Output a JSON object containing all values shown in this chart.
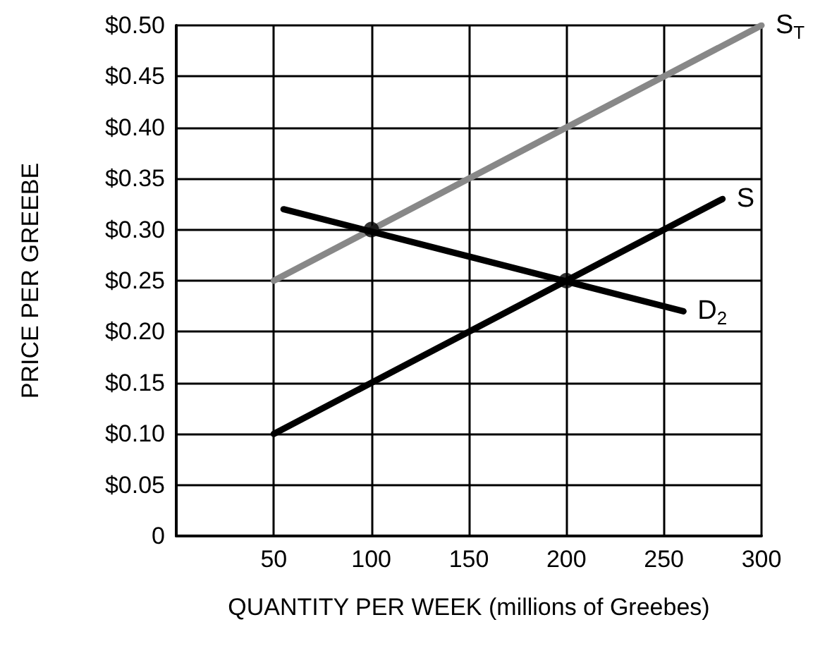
{
  "chart_data": {
    "type": "line",
    "xlabel": "QUANTITY PER WEEK (millions of Greebes)",
    "ylabel": "PRICE PER GREEBE",
    "xlim": [
      0,
      300
    ],
    "xticks": [
      50,
      100,
      150,
      200,
      250,
      300
    ],
    "ylim": [
      0,
      0.5
    ],
    "yticks": [
      0,
      {
        "value": 0.05,
        "label": "$0.05"
      },
      {
        "value": 0.1,
        "label": "$0.10"
      },
      {
        "value": 0.15,
        "label": "$0.15"
      },
      {
        "value": 0.2,
        "label": "$0.20"
      },
      {
        "value": 0.25,
        "label": "$0.25"
      },
      {
        "value": 0.3,
        "label": "$0.30"
      },
      {
        "value": 0.35,
        "label": "$0.35"
      },
      {
        "value": 0.4,
        "label": "$0.40"
      },
      {
        "value": 0.45,
        "label": "$0.45"
      },
      {
        "value": 0.5,
        "label": "$0.50"
      }
    ],
    "grid": true,
    "legend": false,
    "marker": "none",
    "line_style": "solid",
    "series": [
      {
        "name": "S$_{T}$",
        "color": "#888888",
        "x": [
          50,
          300
        ],
        "values": [
          0.25,
          0.5
        ]
      },
      {
        "name": "S",
        "color": "#000000",
        "x": [
          50,
          280
        ],
        "values": [
          0.1,
          0.33
        ]
      },
      {
        "name": "D$_{2}$",
        "color": "#000000",
        "x": [
          55,
          260
        ],
        "values": [
          0.32,
          0.22
        ]
      },
      {
        "type": "scatter",
        "marker": "circle",
        "color": "#000000",
        "x": [
          100,
          200
        ],
        "values": [
          0.3,
          0.25
        ]
      }
    ]
  }
}
